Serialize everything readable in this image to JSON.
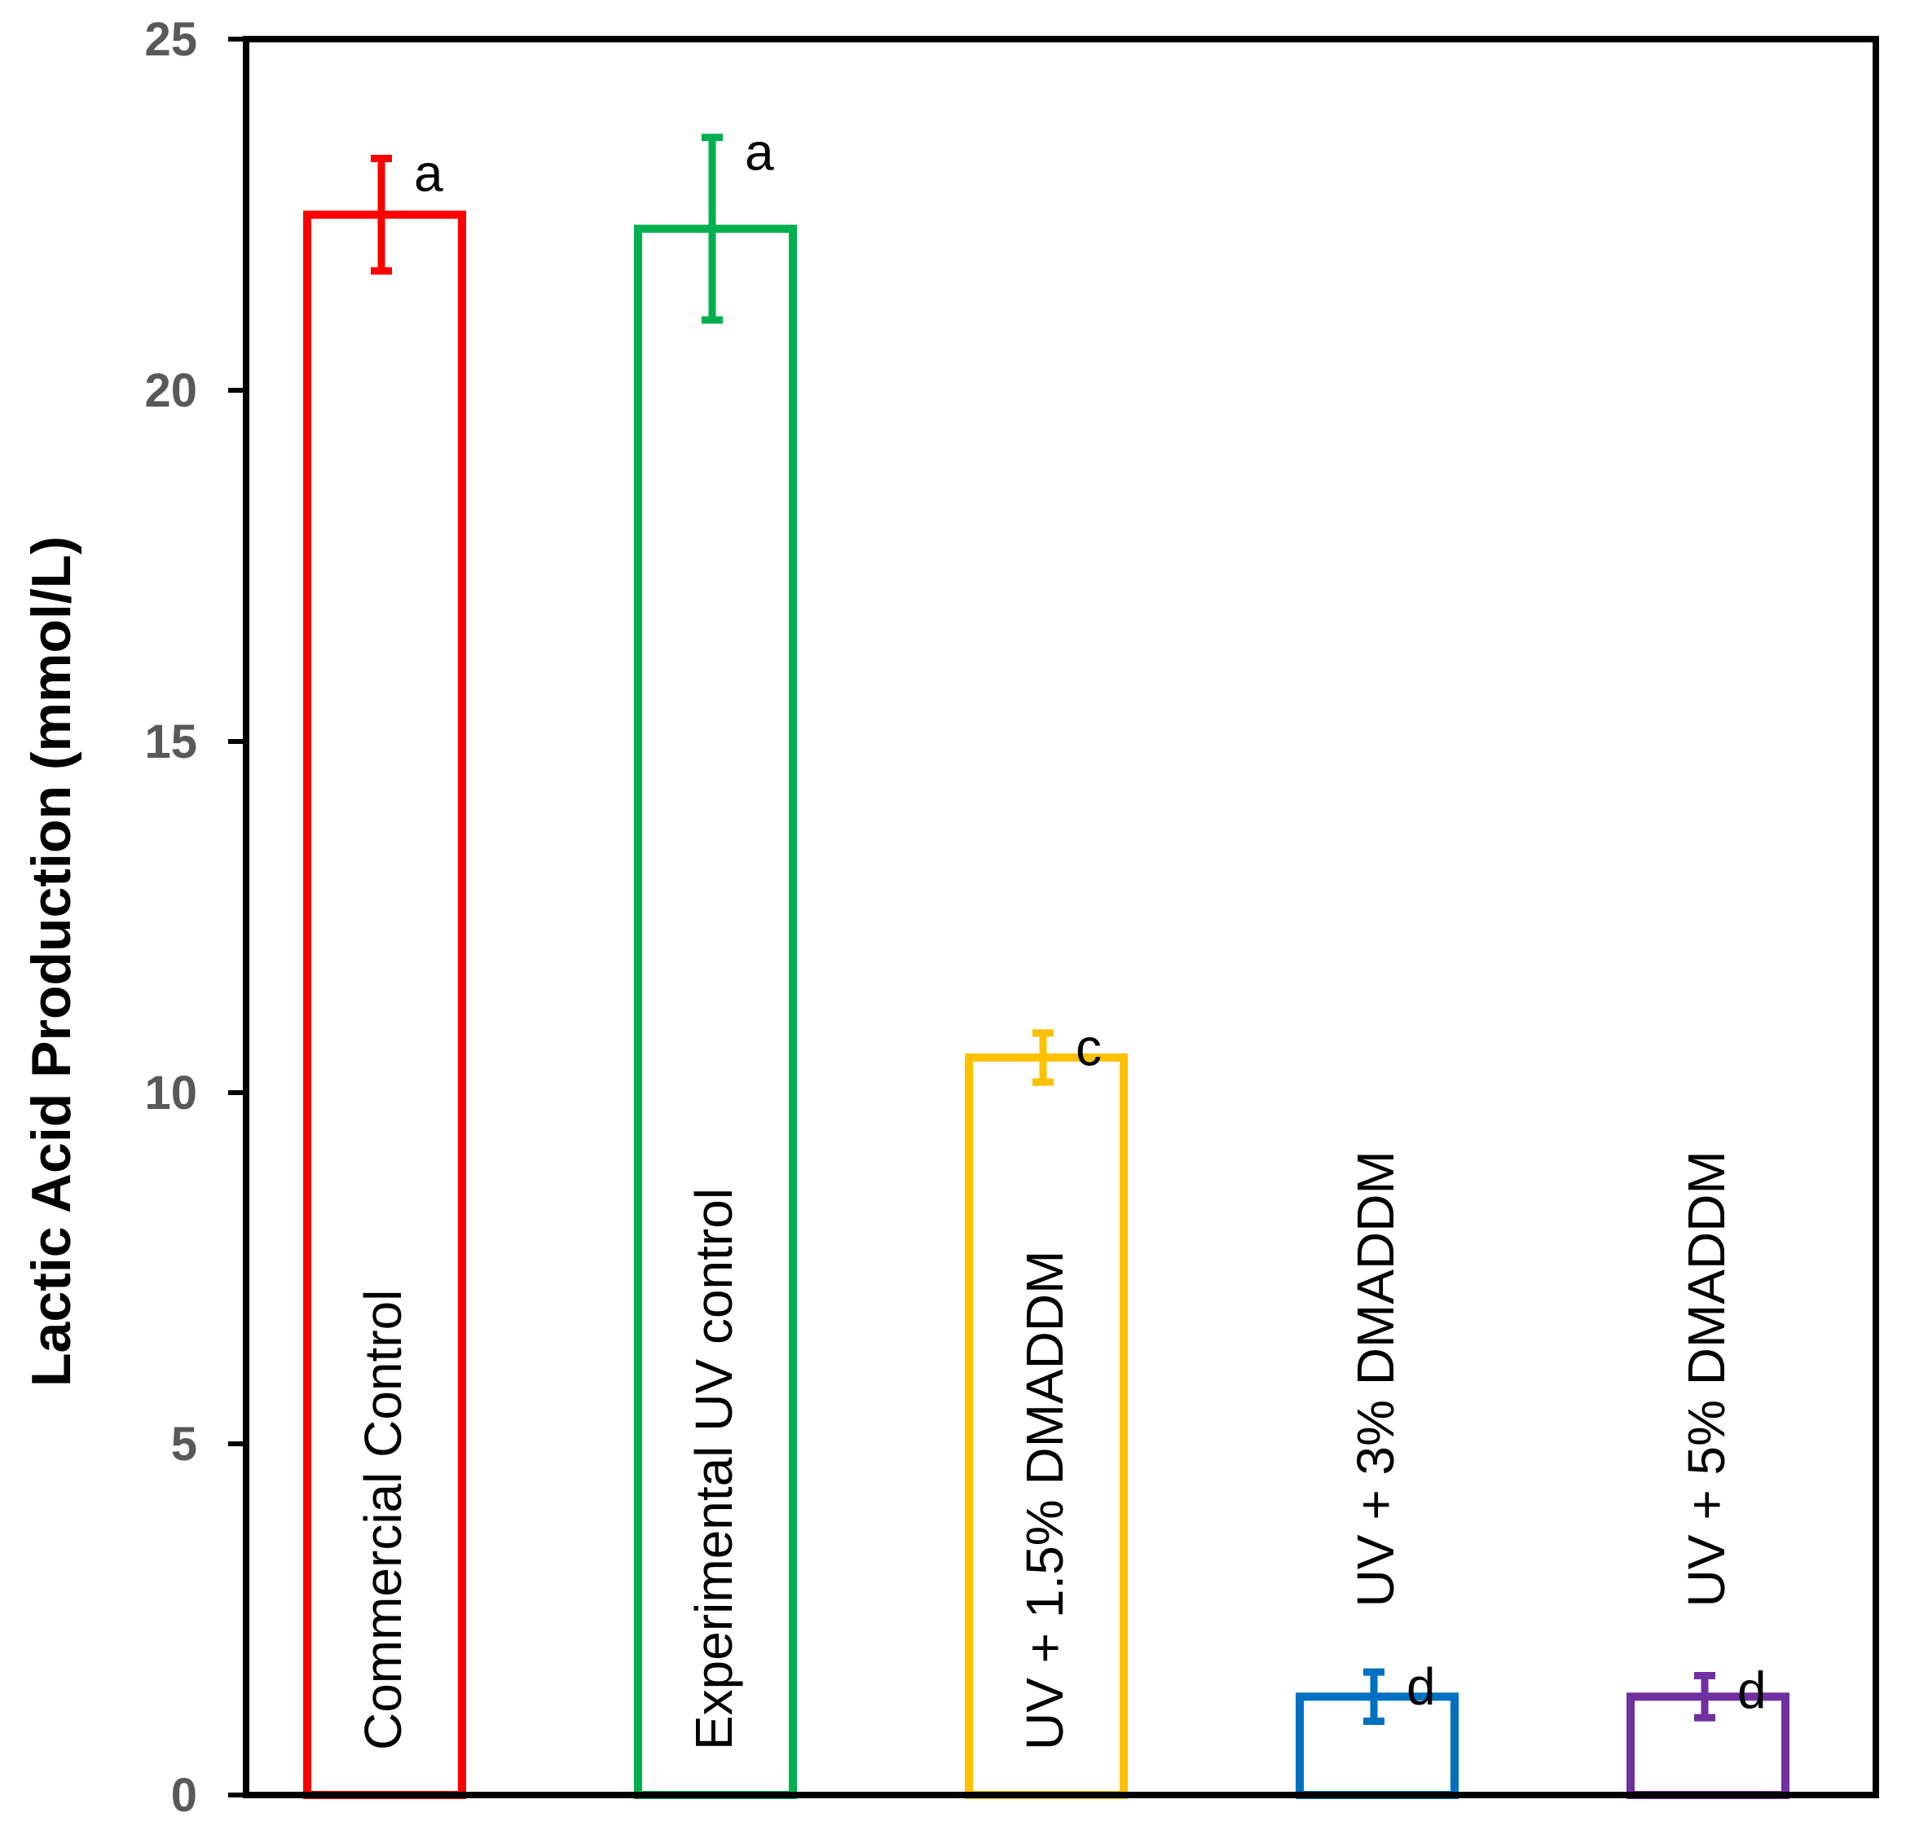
{
  "chart_data": {
    "type": "bar",
    "title": "",
    "xlabel": "",
    "ylabel": "Lactic Acid Production (mmol/L)",
    "ylim": [
      0,
      25
    ],
    "yticks": [
      0,
      5,
      10,
      15,
      20,
      25
    ],
    "grid": false,
    "legend": "none",
    "categories": [
      "Commercial Control",
      "Experimental UV control",
      "UV + 1.5% DMADDM",
      "UV + 3% DMADDM",
      "UV + 5% DMADDM"
    ],
    "values": [
      22.5,
      22.3,
      10.5,
      1.4,
      1.4
    ],
    "errors": [
      0.8,
      1.3,
      0.35,
      0.35,
      0.3
    ],
    "significance_letters": [
      "a",
      "a",
      "c",
      "d",
      "d"
    ],
    "colors": [
      "#ff0000",
      "#00b050",
      "#ffc000",
      "#0070c0",
      "#7030a0"
    ]
  }
}
